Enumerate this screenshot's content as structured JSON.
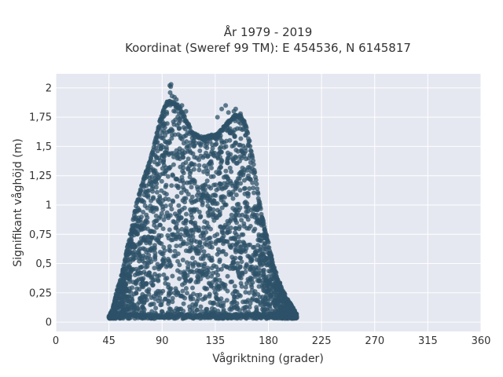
{
  "chart_data": {
    "type": "scatter",
    "title": "År 1979 - 2019",
    "subtitle": "Koordinat (Sweref 99 TM): E 454536, N 6145817",
    "xlabel": "Vågriktning (grader)",
    "ylabel": "Signifikant våghöjd (m)",
    "xlim": [
      0,
      360
    ],
    "ylim": [
      -0.08,
      2.12
    ],
    "x_ticks": [
      0,
      45,
      90,
      135,
      180,
      225,
      270,
      315,
      360
    ],
    "x_tick_labels": [
      "0",
      "45",
      "90",
      "135",
      "180",
      "225",
      "270",
      "315",
      "360"
    ],
    "y_ticks": [
      0,
      0.25,
      0.5,
      0.75,
      1,
      1.25,
      1.5,
      1.75,
      2
    ],
    "y_tick_labels": [
      "0",
      "0,25",
      "0,5",
      "0,75",
      "1",
      "1,25",
      "1,5",
      "1,75",
      "2"
    ],
    "grid": true,
    "marker_color": "#2e5268",
    "background_color": "#e5e8f0",
    "envelope": [
      [
        45,
        0.05
      ],
      [
        48,
        0.12
      ],
      [
        52,
        0.28
      ],
      [
        56,
        0.42
      ],
      [
        60,
        0.62
      ],
      [
        64,
        0.8
      ],
      [
        68,
        1.0
      ],
      [
        72,
        1.15
      ],
      [
        76,
        1.28
      ],
      [
        80,
        1.4
      ],
      [
        84,
        1.55
      ],
      [
        88,
        1.72
      ],
      [
        92,
        1.85
      ],
      [
        96,
        1.9
      ],
      [
        100,
        1.88
      ],
      [
        104,
        1.85
      ],
      [
        108,
        1.78
      ],
      [
        112,
        1.7
      ],
      [
        116,
        1.62
      ],
      [
        120,
        1.6
      ],
      [
        126,
        1.58
      ],
      [
        132,
        1.6
      ],
      [
        138,
        1.62
      ],
      [
        144,
        1.7
      ],
      [
        150,
        1.76
      ],
      [
        156,
        1.78
      ],
      [
        160,
        1.72
      ],
      [
        164,
        1.55
      ],
      [
        168,
        1.32
      ],
      [
        172,
        1.05
      ],
      [
        176,
        0.85
      ],
      [
        180,
        0.68
      ],
      [
        184,
        0.5
      ],
      [
        188,
        0.38
      ],
      [
        192,
        0.28
      ],
      [
        196,
        0.2
      ],
      [
        200,
        0.14
      ],
      [
        204,
        0.07
      ]
    ],
    "outlier_points": [
      [
        96.5,
        2.02
      ],
      [
        97.3,
        2.01
      ],
      [
        97.6,
        2.03
      ],
      [
        96.8,
        1.96
      ],
      [
        98.4,
        1.93
      ],
      [
        94.2,
        1.88
      ],
      [
        100.5,
        1.92
      ],
      [
        102.1,
        1.9
      ],
      [
        106.8,
        1.85
      ],
      [
        110.2,
        1.8
      ],
      [
        140.5,
        1.82
      ],
      [
        143.8,
        1.85
      ],
      [
        146.2,
        1.79
      ],
      [
        150.8,
        1.8
      ],
      [
        156.4,
        1.78
      ],
      [
        136.9,
        1.75
      ],
      [
        152.3,
        1.82
      ]
    ]
  }
}
